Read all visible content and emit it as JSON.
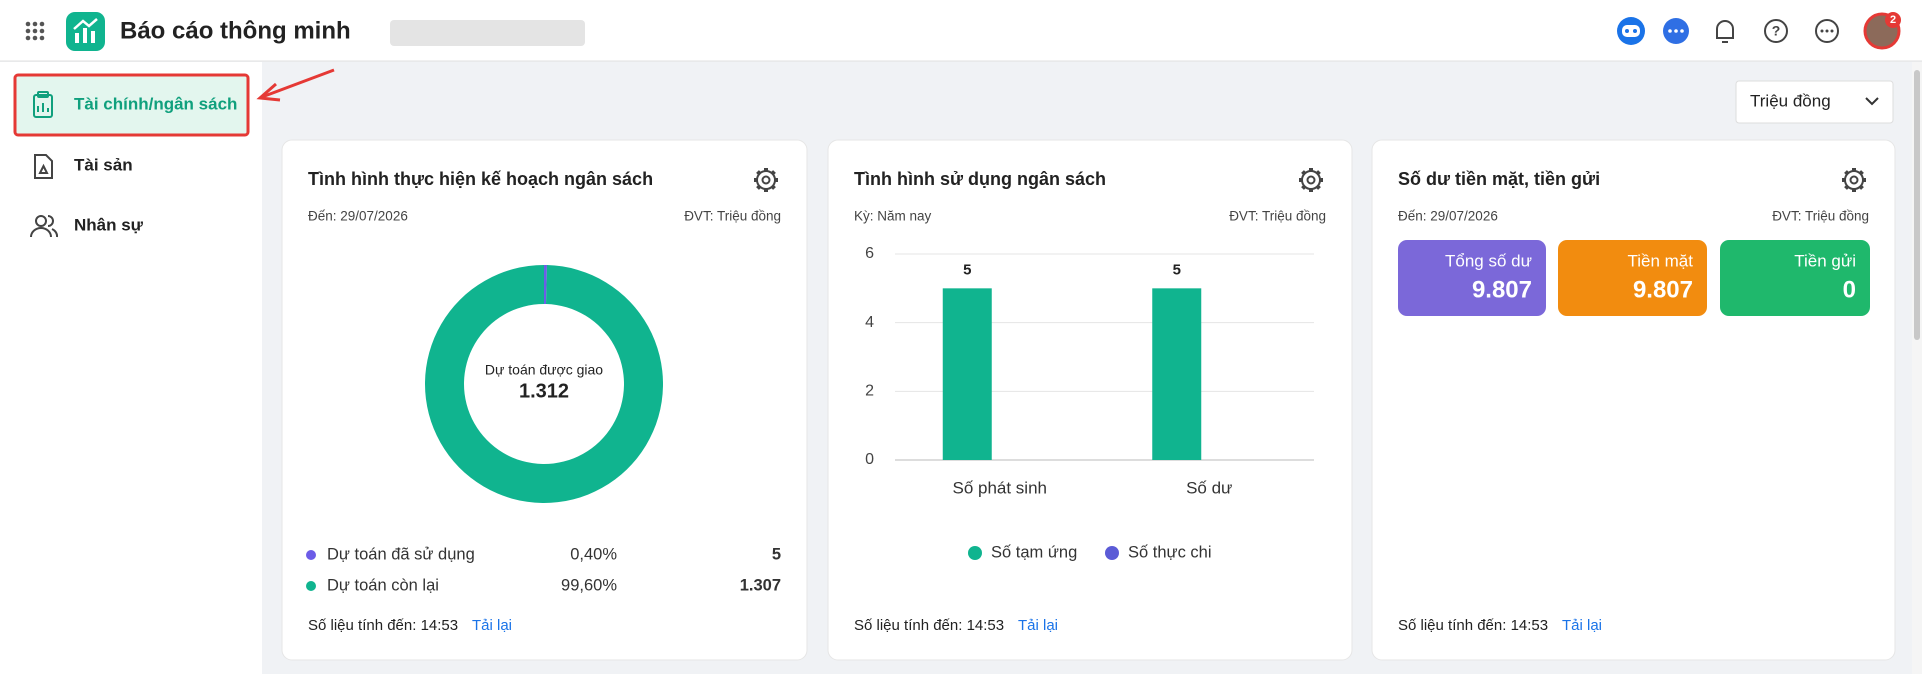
{
  "header": {
    "app_title": "Báo cáo thông minh",
    "notification_count": "2"
  },
  "sidebar": {
    "items": [
      "Tài chính/ngân sách",
      "Tài sản",
      "Nhân sự"
    ]
  },
  "unit_select": "Triệu đồng",
  "cards": [
    {
      "title": "Tình hình thực hiện kế hoạch ngân sách",
      "date": "Đến: 29/07/2026",
      "unit": "ĐVT: Triệu đồng",
      "footer": "Số liệu tính đến: 14:53",
      "reload": "Tải lại"
    },
    {
      "title": "Tình hình sử dụng ngân sách",
      "period": "Kỳ: Năm nay",
      "unit": "ĐVT: Triệu đồng",
      "footer": "Số liệu tính đến: 14:53",
      "reload": "Tải lại"
    },
    {
      "title": "Số dư tiền mặt, tiền gửi",
      "date": "Đến: 29/07/2026",
      "unit": "ĐVT: Triệu đồng",
      "footer": "Số liệu tính đến: 14:53",
      "reload": "Tải lại",
      "tiles": [
        {
          "label": "Tổng số dư",
          "value": "9.807",
          "color": "#7b68d9"
        },
        {
          "label": "Tiền mặt",
          "value": "9.807",
          "color": "#f28c0f"
        },
        {
          "label": "Tiền gửi",
          "value": "0",
          "color": "#1fb86c"
        }
      ]
    }
  ],
  "chart_data": [
    {
      "type": "donut",
      "center_label": "Dự toán được giao",
      "center_value": "1.312",
      "categories": [
        "Dự toán đã sử dụng",
        "Dự toán còn lại"
      ],
      "colors": [
        "#6c5ce7",
        "#10b48f"
      ],
      "percents": [
        0.4,
        99.6
      ],
      "percent_labels": [
        "0,40%",
        "99,60%"
      ],
      "values": [
        5,
        1307
      ],
      "value_labels": [
        "5",
        "1.307"
      ]
    },
    {
      "type": "bar",
      "categories": [
        "Số phát sinh",
        "Số dư"
      ],
      "series": [
        {
          "name": "Số tạm ứng",
          "color": "#10b48f",
          "values": [
            5,
            5
          ]
        },
        {
          "name": "Số thực chi",
          "color": "#5b5bd6",
          "values": [
            0,
            0
          ]
        }
      ],
      "ylim": [
        0,
        6
      ],
      "yticks": [
        0,
        2,
        4,
        6
      ],
      "grid": true
    }
  ]
}
